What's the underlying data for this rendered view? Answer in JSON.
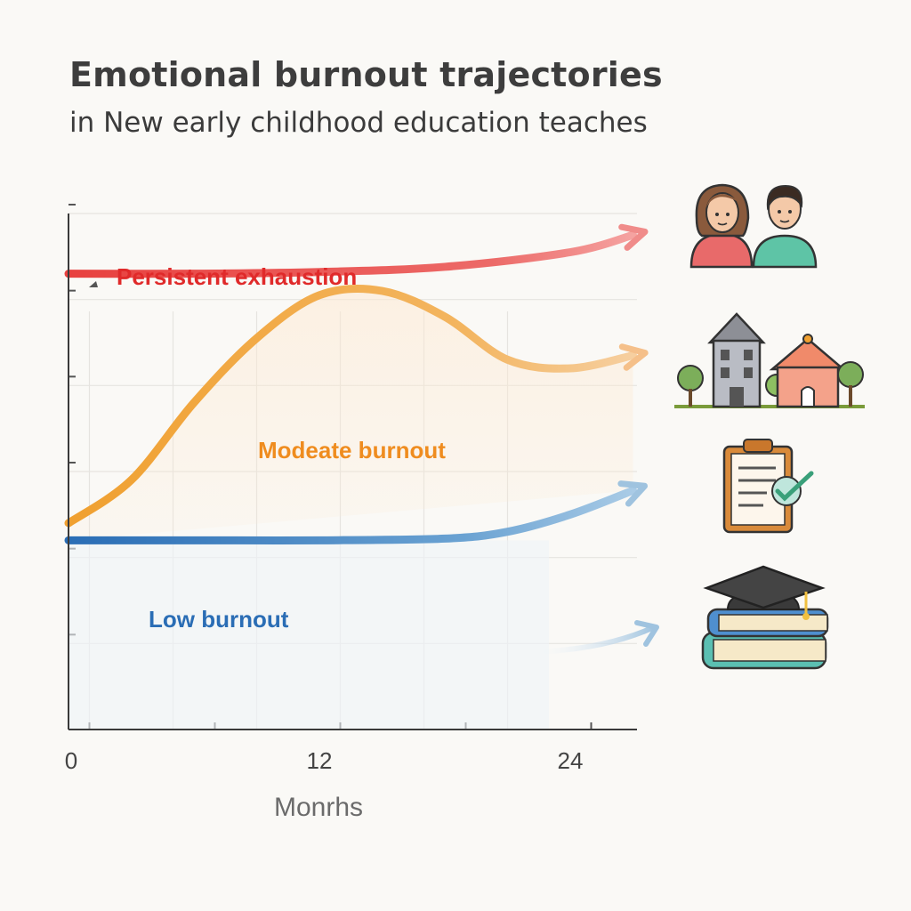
{
  "header": {
    "title": "Emotional burnout trajectories",
    "subtitle": "in New early childhood education teaches"
  },
  "chart_data": {
    "type": "line",
    "title": "Emotional burnout trajectories",
    "subtitle": "in New early childhood education teaches",
    "xlabel": "Monrhs",
    "ylabel": "",
    "x_ticks": [
      0,
      12,
      24
    ],
    "xlim": [
      0,
      30
    ],
    "ylim": [
      0,
      6
    ],
    "grid": true,
    "series": [
      {
        "name": "Persistent exhaustion",
        "color": "#e8413f",
        "x": [
          0,
          6,
          12,
          18,
          24,
          27
        ],
        "y": [
          5.3,
          5.3,
          5.32,
          5.38,
          5.55,
          5.75
        ]
      },
      {
        "name": "Modeate burnout",
        "color": "#f0a030",
        "x": [
          0,
          3,
          6,
          9,
          12,
          15,
          18,
          21,
          24,
          27
        ],
        "y": [
          2.4,
          2.9,
          3.8,
          4.55,
          5.05,
          5.1,
          4.8,
          4.3,
          4.2,
          4.35
        ]
      },
      {
        "name": "Low burnout",
        "color": "#2a6db5",
        "x": [
          0,
          6,
          12,
          18,
          21,
          24,
          27
        ],
        "y": [
          2.2,
          2.2,
          2.2,
          2.22,
          2.3,
          2.5,
          2.78
        ]
      }
    ],
    "icons": [
      "teacher-pair-icon",
      "school-building-icon",
      "clipboard-check-icon",
      "graduation-books-icon"
    ]
  }
}
